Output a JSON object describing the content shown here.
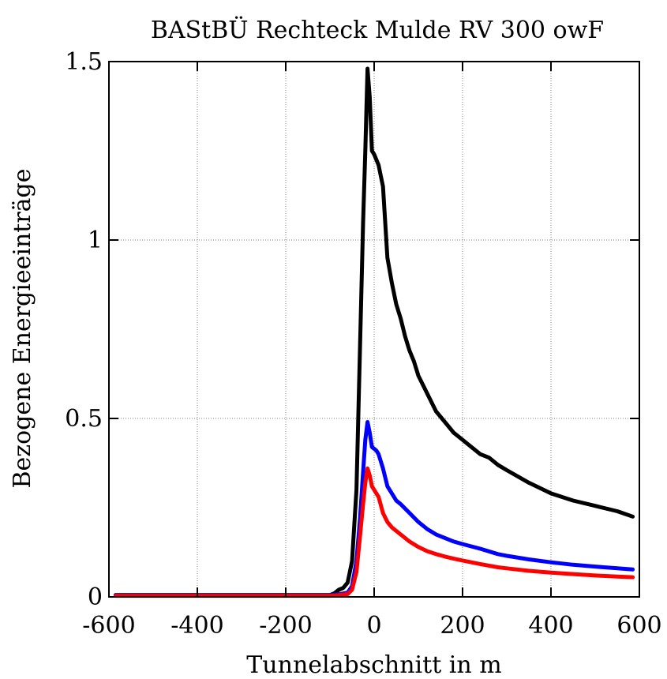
{
  "chart_data": {
    "type": "line",
    "title": "BAStBÜ Rechteck Mulde RV 300 owF",
    "xlabel": "Tunnelabschnitt in m",
    "ylabel": "Bezogene Energieeinträge",
    "xlim": [
      -600,
      600
    ],
    "ylim": [
      0,
      1.5
    ],
    "xticks": [
      -600,
      -400,
      -200,
      0,
      200,
      400,
      600
    ],
    "xtick_labels": [
      "-600",
      "-400",
      "-200",
      "0",
      "200",
      "400",
      "600"
    ],
    "yticks": [
      0,
      0.5,
      1,
      1.5
    ],
    "ytick_labels": [
      "0",
      "0.5",
      "1",
      "1.5"
    ],
    "grid": true,
    "legend": "none",
    "series": [
      {
        "color": "#000000",
        "x": [
          -585,
          -200,
          -100,
          -90,
          -80,
          -70,
          -60,
          -50,
          -40,
          -32,
          -25,
          -20,
          -15,
          -10,
          -5,
          0,
          10,
          20,
          30,
          40,
          50,
          60,
          70,
          80,
          90,
          100,
          120,
          140,
          160,
          180,
          200,
          220,
          240,
          260,
          280,
          300,
          350,
          400,
          450,
          500,
          550,
          585
        ],
        "y": [
          0.005,
          0.005,
          0.005,
          0.01,
          0.02,
          0.025,
          0.04,
          0.1,
          0.3,
          0.7,
          1.05,
          1.25,
          1.48,
          1.4,
          1.25,
          1.24,
          1.21,
          1.15,
          0.95,
          0.88,
          0.82,
          0.78,
          0.73,
          0.69,
          0.66,
          0.62,
          0.57,
          0.52,
          0.49,
          0.46,
          0.44,
          0.42,
          0.4,
          0.39,
          0.37,
          0.355,
          0.32,
          0.29,
          0.27,
          0.255,
          0.24,
          0.225
        ]
      },
      {
        "color": "#0000ff",
        "x": [
          -585,
          -200,
          -100,
          -80,
          -60,
          -50,
          -40,
          -32,
          -25,
          -20,
          -15,
          -10,
          -5,
          0,
          5,
          10,
          20,
          30,
          40,
          50,
          60,
          80,
          100,
          120,
          140,
          160,
          180,
          200,
          240,
          280,
          300,
          350,
          400,
          450,
          500,
          550,
          585
        ],
        "y": [
          0.005,
          0.005,
          0.005,
          0.007,
          0.012,
          0.03,
          0.1,
          0.22,
          0.35,
          0.44,
          0.49,
          0.46,
          0.42,
          0.415,
          0.41,
          0.4,
          0.36,
          0.31,
          0.29,
          0.27,
          0.26,
          0.235,
          0.21,
          0.19,
          0.175,
          0.165,
          0.155,
          0.148,
          0.135,
          0.12,
          0.115,
          0.105,
          0.097,
          0.09,
          0.085,
          0.08,
          0.077
        ]
      },
      {
        "color": "#ff0000",
        "x": [
          -585,
          -200,
          -100,
          -80,
          -60,
          -50,
          -40,
          -32,
          -25,
          -20,
          -15,
          -10,
          -5,
          0,
          5,
          10,
          20,
          30,
          40,
          50,
          60,
          80,
          100,
          120,
          140,
          160,
          180,
          200,
          240,
          280,
          300,
          350,
          400,
          450,
          500,
          550,
          585
        ],
        "y": [
          0.003,
          0.003,
          0.003,
          0.005,
          0.008,
          0.02,
          0.07,
          0.17,
          0.26,
          0.32,
          0.36,
          0.34,
          0.31,
          0.3,
          0.29,
          0.28,
          0.235,
          0.21,
          0.195,
          0.185,
          0.175,
          0.155,
          0.14,
          0.128,
          0.12,
          0.113,
          0.107,
          0.102,
          0.092,
          0.083,
          0.08,
          0.073,
          0.068,
          0.064,
          0.06,
          0.057,
          0.055
        ]
      }
    ]
  }
}
